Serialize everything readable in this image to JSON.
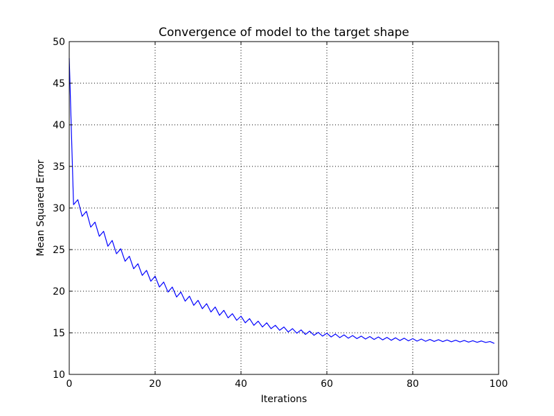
{
  "chart_data": {
    "type": "line",
    "title": "Convergence of model to the target shape",
    "xlabel": "Iterations",
    "ylabel": "Mean Squared Error",
    "xlim": [
      0,
      100
    ],
    "ylim": [
      10,
      50
    ],
    "xticks": [
      0,
      20,
      40,
      60,
      80,
      100
    ],
    "yticks": [
      10,
      15,
      20,
      25,
      30,
      35,
      40,
      45,
      50
    ],
    "grid": true,
    "legend": "none",
    "series": [
      {
        "color": "#0000ff",
        "x": [
          0,
          1,
          2,
          3,
          4,
          5,
          6,
          7,
          8,
          9,
          10,
          11,
          12,
          13,
          14,
          15,
          16,
          17,
          18,
          19,
          20,
          21,
          22,
          23,
          24,
          25,
          26,
          27,
          28,
          29,
          30,
          31,
          32,
          33,
          34,
          35,
          36,
          37,
          38,
          39,
          40,
          41,
          42,
          43,
          44,
          45,
          46,
          47,
          48,
          49,
          50,
          51,
          52,
          53,
          54,
          55,
          56,
          57,
          58,
          59,
          60,
          61,
          62,
          63,
          64,
          65,
          66,
          67,
          68,
          69,
          70,
          71,
          72,
          73,
          74,
          75,
          76,
          77,
          78,
          79,
          80,
          81,
          82,
          83,
          84,
          85,
          86,
          87,
          88,
          89,
          90,
          91,
          92,
          93,
          94,
          95,
          96,
          97,
          98,
          99
        ],
        "y": [
          48.0,
          30.4,
          31.0,
          29.0,
          29.6,
          27.7,
          28.3,
          26.6,
          27.2,
          25.4,
          26.1,
          24.5,
          25.1,
          23.6,
          24.2,
          22.7,
          23.3,
          21.9,
          22.5,
          21.2,
          21.8,
          20.5,
          21.1,
          19.9,
          20.5,
          19.3,
          19.9,
          18.8,
          19.4,
          18.3,
          18.9,
          17.9,
          18.5,
          17.5,
          18.1,
          17.1,
          17.7,
          16.8,
          17.3,
          16.5,
          17.0,
          16.2,
          16.7,
          15.9,
          16.4,
          15.7,
          16.2,
          15.5,
          15.9,
          15.3,
          15.7,
          15.1,
          15.5,
          14.95,
          15.35,
          14.8,
          15.2,
          14.7,
          15.05,
          14.6,
          14.95,
          14.5,
          14.85,
          14.42,
          14.75,
          14.35,
          14.67,
          14.3,
          14.6,
          14.25,
          14.55,
          14.2,
          14.5,
          14.15,
          14.45,
          14.1,
          14.4,
          14.07,
          14.35,
          14.03,
          14.3,
          14.0,
          14.25,
          13.98,
          14.2,
          13.96,
          14.17,
          13.94,
          14.14,
          13.92,
          14.11,
          13.9,
          14.08,
          13.88,
          14.05,
          13.86,
          14.02,
          13.84,
          13.95,
          13.72
        ]
      }
    ]
  }
}
